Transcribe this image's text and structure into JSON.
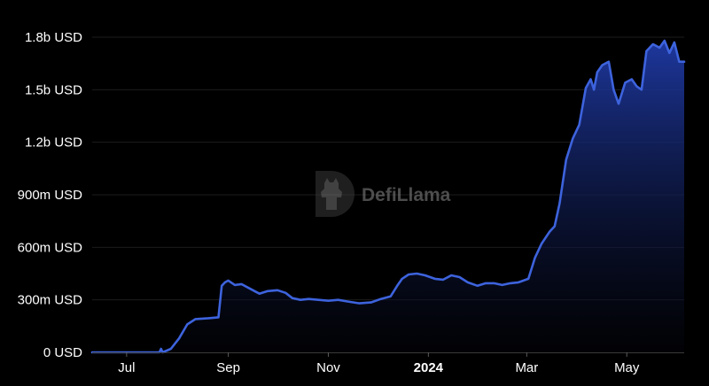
{
  "chart_data": {
    "type": "area",
    "title": "",
    "xlabel": "",
    "ylabel": "",
    "y_unit": "USD",
    "ylim": [
      0,
      1800000000
    ],
    "y_ticks": [
      {
        "value": 0,
        "label": "0 USD"
      },
      {
        "value": 300000000,
        "label": "300m USD"
      },
      {
        "value": 600000000,
        "label": "600m USD"
      },
      {
        "value": 900000000,
        "label": "900m USD"
      },
      {
        "value": 1200000000,
        "label": "1.2b USD"
      },
      {
        "value": 1500000000,
        "label": "1.5b USD"
      },
      {
        "value": 1800000000,
        "label": "1.8b USD"
      }
    ],
    "xlim": [
      "2023-06-10",
      "2024-06-05"
    ],
    "x_ticks": [
      {
        "date": "2023-07-01",
        "label": "Jul",
        "bold": false
      },
      {
        "date": "2023-09-01",
        "label": "Sep",
        "bold": false
      },
      {
        "date": "2023-11-01",
        "label": "Nov",
        "bold": false
      },
      {
        "date": "2024-01-01",
        "label": "2024",
        "bold": true
      },
      {
        "date": "2024-03-01",
        "label": "Mar",
        "bold": false
      },
      {
        "date": "2024-05-01",
        "label": "May",
        "bold": false
      }
    ],
    "grid": true,
    "legend": "none",
    "line_color": "#3d63dd",
    "fill_color_top": "#1f3aa6",
    "fill_color_bottom": "#05060f",
    "x": [
      "2023-06-10",
      "2023-07-21",
      "2023-07-22",
      "2023-07-23",
      "2023-07-28",
      "2023-08-02",
      "2023-08-07",
      "2023-08-12",
      "2023-08-20",
      "2023-08-26",
      "2023-08-28",
      "2023-08-30",
      "2023-09-01",
      "2023-09-05",
      "2023-09-09",
      "2023-09-15",
      "2023-09-20",
      "2023-09-25",
      "2023-10-01",
      "2023-10-06",
      "2023-10-10",
      "2023-10-15",
      "2023-10-20",
      "2023-10-26",
      "2023-11-01",
      "2023-11-07",
      "2023-11-13",
      "2023-11-20",
      "2023-11-27",
      "2023-12-03",
      "2023-12-09",
      "2023-12-13",
      "2023-12-16",
      "2023-12-20",
      "2023-12-25",
      "2023-12-30",
      "2024-01-05",
      "2024-01-10",
      "2024-01-15",
      "2024-01-20",
      "2024-01-25",
      "2024-01-31",
      "2024-02-05",
      "2024-02-10",
      "2024-02-15",
      "2024-02-20",
      "2024-02-25",
      "2024-02-28",
      "2024-03-02",
      "2024-03-06",
      "2024-03-10",
      "2024-03-15",
      "2024-03-18",
      "2024-03-21",
      "2024-03-25",
      "2024-03-29",
      "2024-04-02",
      "2024-04-06",
      "2024-04-09",
      "2024-04-11",
      "2024-04-13",
      "2024-04-16",
      "2024-04-20",
      "2024-04-23",
      "2024-04-26",
      "2024-04-30",
      "2024-05-04",
      "2024-05-07",
      "2024-05-10",
      "2024-05-13",
      "2024-05-17",
      "2024-05-21",
      "2024-05-24",
      "2024-05-27",
      "2024-05-30",
      "2024-06-02",
      "2024-06-05"
    ],
    "series": [
      {
        "values": [
          0,
          0,
          20000000,
          0,
          20000000,
          80000000,
          160000000,
          190000000,
          195000000,
          200000000,
          380000000,
          400000000,
          410000000,
          385000000,
          390000000,
          360000000,
          335000000,
          350000000,
          355000000,
          340000000,
          310000000,
          300000000,
          305000000,
          300000000,
          295000000,
          300000000,
          290000000,
          280000000,
          285000000,
          305000000,
          320000000,
          380000000,
          420000000,
          445000000,
          450000000,
          440000000,
          420000000,
          415000000,
          440000000,
          430000000,
          400000000,
          380000000,
          395000000,
          395000000,
          385000000,
          395000000,
          400000000,
          410000000,
          420000000,
          540000000,
          620000000,
          690000000,
          720000000,
          850000000,
          1100000000,
          1220000000,
          1300000000,
          1510000000,
          1560000000,
          1500000000,
          1600000000,
          1640000000,
          1660000000,
          1500000000,
          1420000000,
          1540000000,
          1560000000,
          1520000000,
          1500000000,
          1720000000,
          1760000000,
          1740000000,
          1780000000,
          1710000000,
          1770000000,
          1660000000,
          1660000000
        ]
      }
    ]
  },
  "watermark": {
    "text": "DefiLlama",
    "logo_icon": "defillama-logo-icon"
  }
}
